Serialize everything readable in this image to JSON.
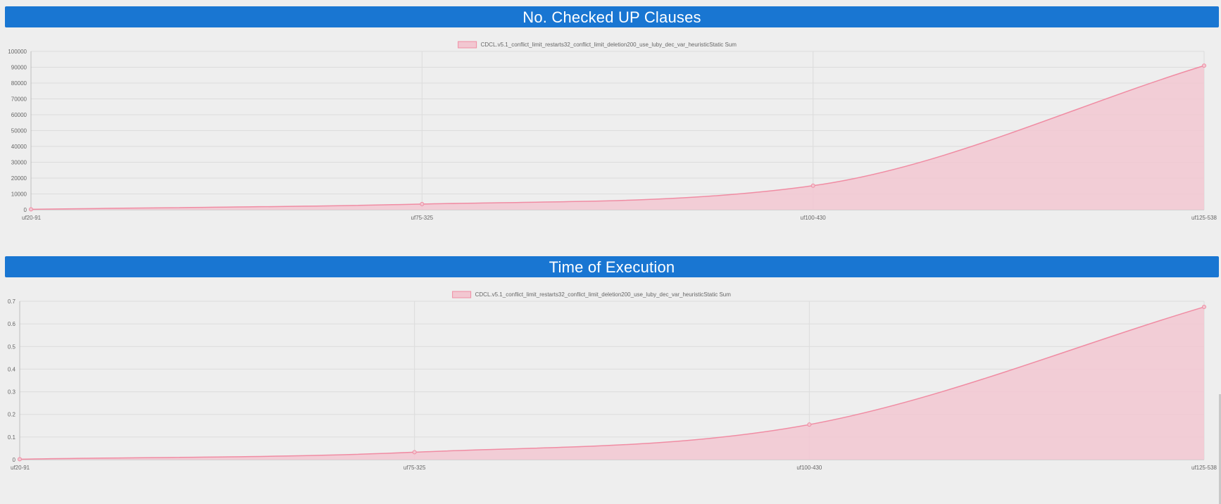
{
  "sections": [
    {
      "title": "No. Checked UP Clauses"
    },
    {
      "title": "Time of Execution"
    }
  ],
  "chart_data": [
    {
      "type": "area",
      "title": "No. Checked UP Clauses",
      "xlabel": "",
      "ylabel": "",
      "categories": [
        "uf20-91",
        "uf75-325",
        "uf100-430",
        "uf125-538"
      ],
      "series": [
        {
          "name": "CDCL.v5.1_conflict_limit_restarts32_conflict_limit_deletion200_use_luby_dec_var_heuristicStatic Sum",
          "values": [
            300,
            3600,
            15200,
            91000
          ],
          "color": "#f08ca3",
          "fill": "#f2c7d1"
        }
      ],
      "ylim": [
        0,
        100000
      ],
      "yticks": [
        0,
        10000,
        20000,
        30000,
        40000,
        50000,
        60000,
        70000,
        80000,
        90000,
        100000
      ],
      "grid": true,
      "legend": "top"
    },
    {
      "type": "area",
      "title": "Time of Execution",
      "xlabel": "",
      "ylabel": "",
      "categories": [
        "uf20-91",
        "uf75-325",
        "uf100-430",
        "uf125-538"
      ],
      "series": [
        {
          "name": "CDCL.v5.1_conflict_limit_restarts32_conflict_limit_deletion200_use_luby_dec_var_heuristicStatic Sum",
          "values": [
            0.002,
            0.033,
            0.155,
            0.675
          ],
          "color": "#f08ca3",
          "fill": "#f2c7d1"
        }
      ],
      "ylim": [
        0,
        0.7
      ],
      "yticks": [
        0,
        0.1,
        0.2,
        0.3,
        0.4,
        0.5,
        0.6,
        0.7
      ],
      "grid": true,
      "legend": "top"
    }
  ]
}
